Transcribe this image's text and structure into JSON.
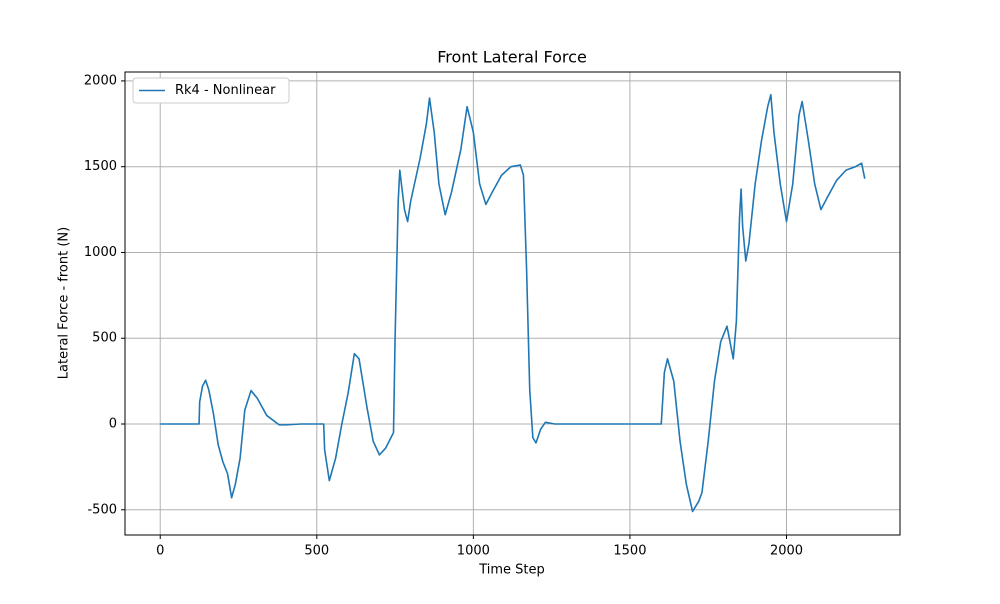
{
  "chart_data": {
    "type": "line",
    "title": "Front Lateral Force",
    "x_label": "Time Step",
    "y_label": "Lateral Force - front (N)",
    "series": [
      {
        "name": "Rk4 - Nonlinear",
        "color": "#1f77b4",
        "x": [
          0,
          60,
          124,
          126,
          135,
          145,
          155,
          170,
          185,
          200,
          215,
          228,
          240,
          255,
          270,
          290,
          310,
          340,
          380,
          400,
          450,
          522,
          525,
          540,
          560,
          580,
          600,
          620,
          635,
          660,
          680,
          700,
          720,
          745,
          750,
          760,
          765,
          780,
          790,
          800,
          830,
          850,
          860,
          875,
          890,
          910,
          930,
          960,
          980,
          1000,
          1020,
          1040,
          1060,
          1090,
          1120,
          1150,
          1160,
          1170,
          1180,
          1190,
          1200,
          1215,
          1230,
          1260,
          1400,
          1600,
          1610,
          1620,
          1640,
          1660,
          1680,
          1700,
          1720,
          1730,
          1750,
          1770,
          1790,
          1810,
          1830,
          1840,
          1850,
          1855,
          1860,
          1870,
          1880,
          1900,
          1920,
          1940,
          1950,
          1960,
          1980,
          2000,
          2020,
          2040,
          2050,
          2070,
          2090,
          2110,
          2130,
          2160,
          2190,
          2220,
          2240,
          2250
        ],
        "values": [
          0,
          0,
          0,
          130,
          220,
          255,
          200,
          60,
          -120,
          -220,
          -290,
          -430,
          -350,
          -200,
          80,
          195,
          150,
          50,
          -5,
          -5,
          0,
          0,
          -150,
          -330,
          -200,
          0,
          180,
          410,
          380,
          100,
          -100,
          -180,
          -140,
          -50,
          500,
          1300,
          1480,
          1250,
          1180,
          1300,
          1550,
          1750,
          1900,
          1700,
          1400,
          1220,
          1350,
          1600,
          1850,
          1700,
          1400,
          1280,
          1350,
          1450,
          1500,
          1510,
          1450,
          900,
          200,
          -80,
          -110,
          -30,
          10,
          0,
          0,
          0,
          300,
          380,
          250,
          -100,
          -350,
          -510,
          -450,
          -400,
          -100,
          250,
          480,
          570,
          380,
          600,
          1200,
          1370,
          1150,
          950,
          1050,
          1400,
          1650,
          1850,
          1920,
          1700,
          1400,
          1180,
          1400,
          1800,
          1880,
          1650,
          1400,
          1250,
          1320,
          1420,
          1480,
          1500,
          1520,
          1430
        ]
      }
    ],
    "xlim": [
      -112.5,
      2362.5
    ],
    "ylim": [
      -647,
      2052
    ],
    "xticks": [
      0,
      500,
      1000,
      1500,
      2000
    ],
    "yticks": [
      -500,
      0,
      500,
      1000,
      1500,
      2000
    ],
    "grid": true,
    "legend": "upper left"
  }
}
